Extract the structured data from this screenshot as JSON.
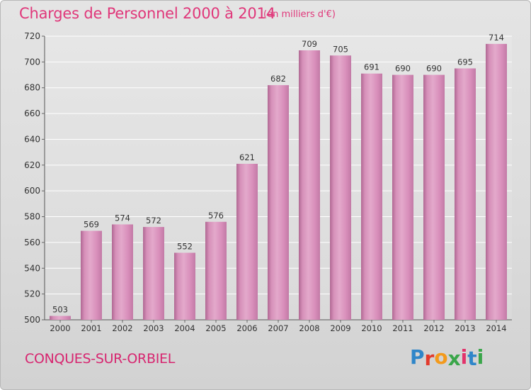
{
  "header": {
    "title": "Charges de Personnel 2000 à 2014",
    "unit": "(en milliers d'€)"
  },
  "footer": {
    "commune": "CONQUES-SUR-ORBIEL",
    "logo": {
      "text": "Proxiti",
      "letters": [
        "P",
        "r",
        "o",
        "x",
        "i",
        "t",
        "i"
      ],
      "colors": [
        "#2f86c9",
        "#e23a2c",
        "#f39a1c",
        "#3aa64a",
        "#e2336b",
        "#2f86c9",
        "#3aa64a"
      ]
    }
  },
  "chart_data": {
    "type": "bar",
    "categories": [
      "2000",
      "2001",
      "2002",
      "2003",
      "2004",
      "2005",
      "2006",
      "2007",
      "2008",
      "2009",
      "2010",
      "2011",
      "2012",
      "2013",
      "2014"
    ],
    "values": [
      503,
      569,
      574,
      572,
      552,
      576,
      621,
      682,
      709,
      705,
      691,
      690,
      690,
      695,
      714
    ],
    "title": "Charges de Personnel 2000 à 2014",
    "subtitle": "(en milliers d'€)",
    "xlabel": "",
    "ylabel": "",
    "ylim": [
      500,
      720
    ],
    "yticks": [
      500,
      520,
      540,
      560,
      580,
      600,
      620,
      640,
      660,
      680,
      700,
      720
    ],
    "grid": true,
    "bar_color": "#d486b4"
  }
}
